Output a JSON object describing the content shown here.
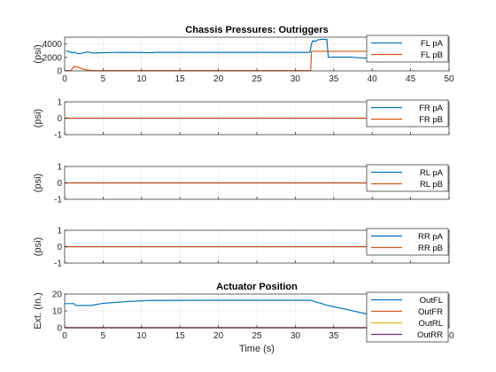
{
  "chart_data": [
    {
      "type": "line",
      "title": "Chassis Pressures: Outriggers",
      "xlabel": "",
      "ylabel": "(psi)",
      "xlim": [
        0,
        50
      ],
      "ylim": [
        0,
        5000
      ],
      "xticks": [
        0,
        5,
        10,
        15,
        20,
        25,
        30,
        35,
        40,
        45,
        50
      ],
      "yticks": [
        0,
        2000,
        4000
      ],
      "yticklabels": [
        "0",
        "2000",
        "4000"
      ],
      "legend": "top-right",
      "series": [
        {
          "name": "FL pA",
          "color": "#0072BD",
          "x": [
            0.2,
            0.5,
            0.8,
            1.0,
            1.3,
            1.6,
            2.0,
            2.5,
            3.0,
            3.5,
            4.0,
            5.0,
            8.0,
            11.5,
            11.7,
            20.0,
            30.0,
            31.9,
            32.1,
            32.3,
            32.6,
            32.9,
            33.2,
            33.6,
            33.9,
            34.1,
            34.3,
            35.0,
            37.0,
            39.0,
            40.0,
            40.8,
            41.2,
            42.5,
            44.0,
            45.5
          ],
          "y": [
            3000,
            2850,
            2750,
            2650,
            2800,
            2600,
            2550,
            2700,
            2800,
            2700,
            2650,
            2700,
            2750,
            2700,
            2750,
            2750,
            2750,
            2750,
            4000,
            4500,
            4350,
            4600,
            4650,
            4700,
            4650,
            4700,
            2000,
            2050,
            2050,
            1900,
            1900,
            1300,
            1900,
            1950,
            1900,
            1900
          ]
        },
        {
          "name": "FL pB",
          "color": "#D95319",
          "x": [
            0.2,
            0.8,
            1.0,
            1.3,
            1.8,
            2.3,
            2.8,
            3.5,
            5.0,
            10.0,
            20.0,
            30.0,
            32.0,
            32.1,
            33.0,
            36.0,
            40.0,
            45.5
          ],
          "y": [
            50,
            60,
            300,
            700,
            500,
            300,
            150,
            50,
            30,
            30,
            30,
            30,
            30,
            2900,
            2900,
            2900,
            2900,
            2900
          ]
        }
      ]
    },
    {
      "type": "line",
      "title": "",
      "xlabel": "",
      "ylabel": "(psi)",
      "xlim": [
        0,
        50
      ],
      "ylim": [
        -1,
        1
      ],
      "yticks": [
        -1,
        0,
        1
      ],
      "yticklabels": [
        "-1",
        "0",
        "1"
      ],
      "legend": "top-right",
      "series": [
        {
          "name": "FR pA",
          "color": "#0072BD",
          "x": [
            0,
            50
          ],
          "y": [
            0,
            0
          ]
        },
        {
          "name": "FR pB",
          "color": "#D95319",
          "x": [
            0,
            50
          ],
          "y": [
            0,
            0
          ]
        }
      ]
    },
    {
      "type": "line",
      "title": "",
      "xlabel": "",
      "ylabel": "(psi)",
      "xlim": [
        0,
        50
      ],
      "ylim": [
        -1,
        1
      ],
      "yticks": [
        -1,
        0,
        1
      ],
      "yticklabels": [
        "-1",
        "0",
        "1"
      ],
      "legend": "top-right",
      "series": [
        {
          "name": "RL pA",
          "color": "#0072BD",
          "x": [
            0,
            50
          ],
          "y": [
            0,
            0
          ]
        },
        {
          "name": "RL pB",
          "color": "#D95319",
          "x": [
            0,
            50
          ],
          "y": [
            0,
            0
          ]
        }
      ]
    },
    {
      "type": "line",
      "title": "",
      "xlabel": "",
      "ylabel": "(psi)",
      "xlim": [
        0,
        50
      ],
      "ylim": [
        -1,
        1
      ],
      "yticks": [
        -1,
        0,
        1
      ],
      "yticklabels": [
        "-1",
        "0",
        "1"
      ],
      "legend": "top-right",
      "series": [
        {
          "name": "RR pA",
          "color": "#0072BD",
          "x": [
            0,
            50
          ],
          "y": [
            0,
            0
          ]
        },
        {
          "name": "RR pB",
          "color": "#D95319",
          "x": [
            0,
            50
          ],
          "y": [
            0,
            0
          ]
        }
      ]
    },
    {
      "type": "line",
      "title": "Actuator Position",
      "xlabel": "Time (s)",
      "ylabel": "Ext. (In.)",
      "xlim": [
        0,
        50
      ],
      "ylim": [
        0,
        20
      ],
      "xticks": [
        0,
        5,
        10,
        15,
        20,
        25,
        30,
        35,
        40,
        45,
        50
      ],
      "yticks": [
        0,
        10,
        20
      ],
      "yticklabels": [
        "0",
        "10",
        "20"
      ],
      "legend": "top-right",
      "series": [
        {
          "name": "OutFL",
          "color": "#0072BD",
          "x": [
            0,
            1.2,
            1.5,
            3.5,
            5.0,
            8.0,
            11.0,
            20.0,
            30.0,
            32.0,
            34.0,
            37.0,
            40.0,
            45.5
          ],
          "y": [
            14.3,
            14.3,
            13.2,
            13.3,
            14.5,
            15.5,
            16.2,
            16.3,
            16.3,
            16.3,
            13.5,
            10.5,
            7.5,
            3.0
          ]
        },
        {
          "name": "OutFR",
          "color": "#D95319",
          "x": [
            0,
            45.5
          ],
          "y": [
            0,
            0
          ]
        },
        {
          "name": "OutRL",
          "color": "#EDB120",
          "x": [
            0,
            45.5
          ],
          "y": [
            0,
            0
          ]
        },
        {
          "name": "OutRR",
          "color": "#7E2F8E",
          "x": [
            0,
            45.5
          ],
          "y": [
            0,
            0
          ]
        }
      ]
    }
  ]
}
